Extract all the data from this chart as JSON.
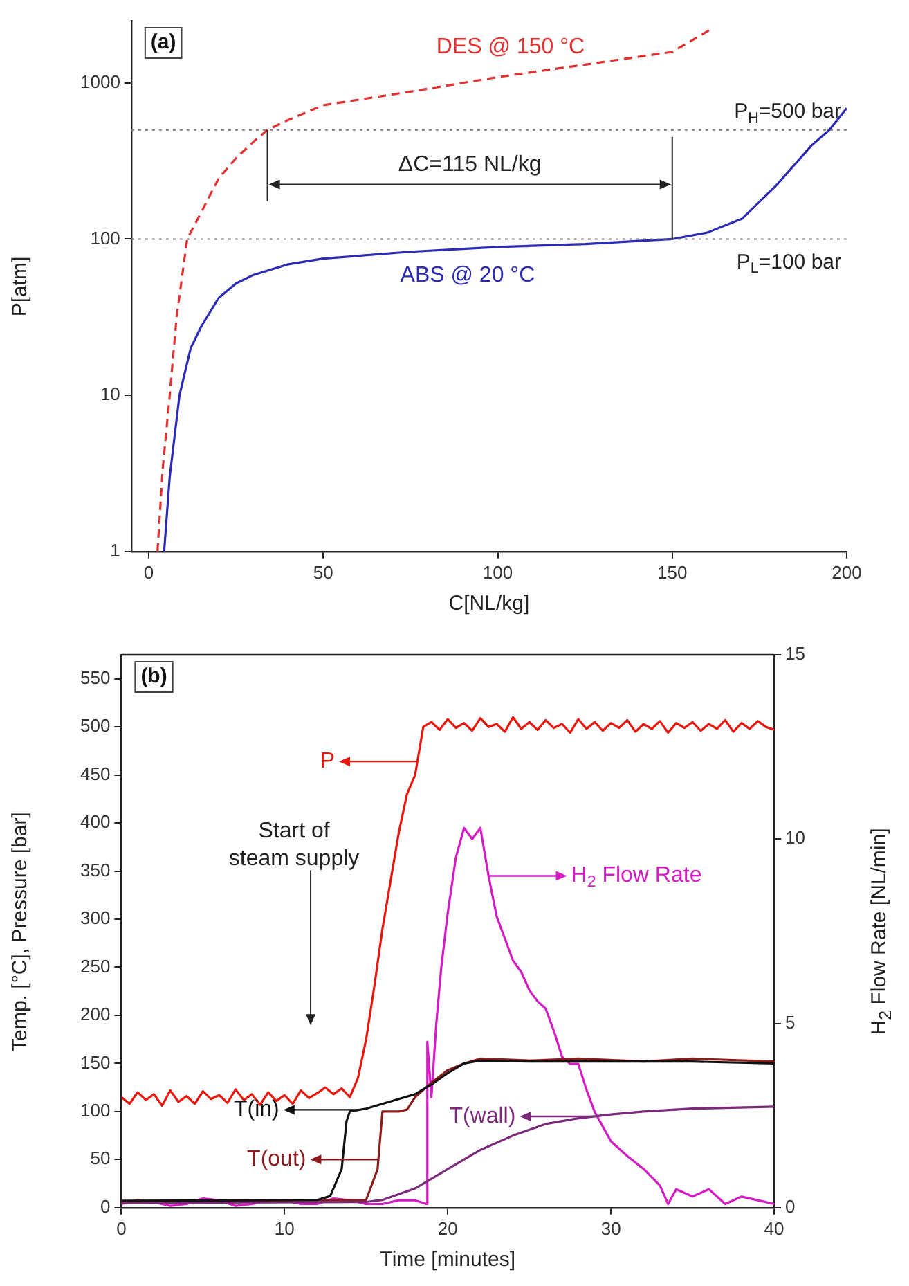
{
  "chart_data": [
    {
      "type": "line",
      "xlabel": "C[NL/kg]",
      "ylabel": "P[atm]",
      "log": "y",
      "xlim": [
        -5,
        200
      ],
      "xticks": [
        0,
        50,
        100,
        150,
        200
      ],
      "ylim": [
        1,
        2500
      ],
      "yticks": [
        1,
        10,
        100,
        1000
      ],
      "grid": false,
      "series": [
        {
          "name": "DES @ 150 °C",
          "color": "#e53030",
          "line_style": "dashed",
          "x": [
            2.5,
            4,
            6,
            8,
            11,
            15,
            20,
            25,
            30,
            34,
            40,
            50,
            75,
            100,
            125,
            150,
            161
          ],
          "values": [
            1,
            3.4,
            10,
            32,
            100,
            148,
            244,
            330,
            420,
            500,
            580,
            720,
            880,
            1090,
            1310,
            1580,
            2200
          ]
        },
        {
          "name": "ABS @ 20 °C",
          "color": "#2b2bb5",
          "line_style": "solid",
          "x": [
            4.4,
            6,
            8.8,
            12,
            15,
            20,
            25,
            30,
            40,
            50,
            75,
            100,
            125,
            150,
            160,
            170,
            180,
            190,
            195,
            200
          ],
          "values": [
            1,
            3,
            10,
            20,
            27.5,
            42,
            52,
            59,
            69,
            75,
            83,
            89,
            93,
            100,
            110,
            135,
            223,
            400,
            500,
            690
          ]
        }
      ],
      "ref_lines": [
        {
          "axis": "y",
          "value": 500,
          "label": "P$_{H}$=500 bar",
          "color": "#777777",
          "line_style": "dotted"
        },
        {
          "axis": "y",
          "value": 100,
          "label": "P$_{L}$=100 bar",
          "color": "#777777",
          "line_style": "dotted"
        }
      ],
      "annotations": [
        "(a)",
        "ΔC=115 NL/kg"
      ]
    },
    {
      "type": "line",
      "xlabel": "Time [minutes]",
      "ylabel": "Temp. [°C], Pressure [bar]",
      "y2label": "H$_{2}$ Flow Rate [NL/min]",
      "xlim": [
        0,
        40
      ],
      "xticks": [
        0,
        10,
        20,
        30,
        40
      ],
      "ylim": [
        0,
        575
      ],
      "yticks": [
        0,
        50,
        100,
        150,
        200,
        250,
        300,
        350,
        400,
        450,
        500,
        550
      ],
      "y2lim": [
        0,
        15
      ],
      "y2ticks": [
        0,
        5,
        10,
        15
      ],
      "grid": false,
      "legend": "left",
      "series": [
        {
          "name": "P",
          "color": "#e8160c",
          "x": [
            0,
            0.5,
            1,
            1.5,
            2,
            2.5,
            3,
            3.5,
            4,
            4.5,
            5,
            5.5,
            6,
            6.5,
            7,
            7.5,
            8,
            8.5,
            9,
            9.5,
            10,
            10.5,
            11,
            11.5,
            12,
            12.5,
            13,
            13.5,
            14,
            14.5,
            15,
            15.5,
            16,
            16.5,
            17,
            17.5,
            18,
            18.5,
            19,
            19.5,
            20,
            20.5,
            21,
            21.5,
            22,
            22.5,
            23,
            23.5,
            24,
            24.5,
            25,
            25.5,
            26,
            26.5,
            27,
            27.5,
            28,
            28.5,
            29,
            29.5,
            30,
            30.5,
            31,
            31.5,
            32,
            32.5,
            33,
            33.5,
            34,
            34.5,
            35,
            35.5,
            36,
            36.5,
            37,
            37.5,
            38,
            38.5,
            39,
            39.5,
            40
          ],
          "values": [
            115,
            108,
            120,
            112,
            118,
            106,
            122,
            110,
            116,
            108,
            121,
            113,
            117,
            109,
            123,
            112,
            118,
            107,
            120,
            111,
            117,
            108,
            122,
            114,
            119,
            125,
            118,
            124,
            115,
            135,
            175,
            230,
            290,
            340,
            390,
            430,
            450,
            500,
            505,
            497,
            508,
            499,
            504,
            496,
            509,
            500,
            503,
            495,
            510,
            498,
            505,
            497,
            507,
            499,
            503,
            494,
            508,
            498,
            505,
            496,
            504,
            499,
            507,
            495,
            503,
            498,
            506,
            494,
            504,
            499,
            505,
            496,
            503,
            498,
            507,
            495,
            504,
            498,
            506,
            500,
            497
          ]
        },
        {
          "name": "T(in)",
          "color": "#111111",
          "x": [
            0,
            12,
            12.8,
            13.5,
            13.8,
            14,
            15,
            16,
            17,
            18,
            19,
            20,
            21,
            22,
            25,
            30,
            35,
            40
          ],
          "values": [
            7,
            8,
            12,
            40,
            90,
            100,
            103,
            108,
            113,
            118,
            128,
            140,
            150,
            153,
            152,
            152,
            152,
            150
          ]
        },
        {
          "name": "T(out)",
          "color": "#8c1c1c",
          "x": [
            0,
            15,
            15.7,
            16,
            17,
            17.5,
            18,
            19,
            20,
            21,
            22,
            25,
            28,
            32,
            35,
            40
          ],
          "values": [
            7,
            8,
            40,
            100,
            100,
            102,
            115,
            130,
            143,
            150,
            155,
            153,
            155,
            152,
            155,
            152
          ]
        },
        {
          "name": "T(wall)",
          "color": "#7b2a7b",
          "x": [
            0,
            15,
            16,
            18,
            20,
            22,
            24,
            26,
            28,
            30,
            32,
            35,
            40
          ],
          "values": [
            5,
            6,
            8,
            20,
            40,
            60,
            75,
            87,
            93,
            97,
            100,
            103,
            105
          ]
        },
        {
          "name": "H$_{2}$ Flow Rate",
          "color": "#d41bc4",
          "axis": "y2",
          "x": [
            0,
            1,
            2,
            3,
            4,
            5,
            6,
            7,
            8,
            9,
            10,
            11,
            12,
            13,
            14,
            15,
            16,
            17,
            18,
            18.7,
            18.75,
            19,
            19.3,
            19.6,
            20,
            20.5,
            21,
            21.5,
            22,
            22.5,
            23,
            23.5,
            24,
            24.5,
            25,
            25.5,
            26,
            26.5,
            27,
            27.5,
            28,
            28.5,
            29,
            29.5,
            30,
            31,
            32,
            33,
            33.5,
            34,
            35,
            36,
            37,
            38,
            39,
            40
          ],
          "values": [
            0.1,
            0.2,
            0.15,
            0.05,
            0.1,
            0.25,
            0.2,
            0.05,
            0.1,
            0.2,
            0.2,
            0.1,
            0.1,
            0.25,
            0.2,
            0.1,
            0.1,
            0.2,
            0.2,
            0.1,
            4.5,
            3,
            5,
            6.5,
            8,
            9.5,
            10.3,
            10,
            10.3,
            9,
            7.9,
            7.3,
            6.7,
            6.4,
            5.9,
            5.6,
            5.4,
            4.8,
            4.1,
            3.9,
            3.9,
            3.2,
            2.6,
            2.2,
            1.8,
            1.4,
            1.05,
            0.6,
            0.1,
            0.5,
            0.3,
            0.5,
            0.1,
            0.3,
            0.2,
            0.1
          ]
        }
      ],
      "annotations": [
        "(b)",
        "Start of steam supply"
      ]
    }
  ]
}
